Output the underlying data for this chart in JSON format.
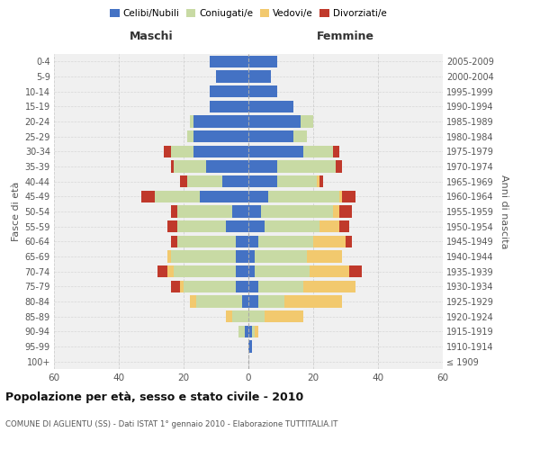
{
  "age_groups": [
    "100+",
    "95-99",
    "90-94",
    "85-89",
    "80-84",
    "75-79",
    "70-74",
    "65-69",
    "60-64",
    "55-59",
    "50-54",
    "45-49",
    "40-44",
    "35-39",
    "30-34",
    "25-29",
    "20-24",
    "15-19",
    "10-14",
    "5-9",
    "0-4"
  ],
  "birth_years": [
    "≤ 1909",
    "1910-1914",
    "1915-1919",
    "1920-1924",
    "1925-1929",
    "1930-1934",
    "1935-1939",
    "1940-1944",
    "1945-1949",
    "1950-1954",
    "1955-1959",
    "1960-1964",
    "1965-1969",
    "1970-1974",
    "1975-1979",
    "1980-1984",
    "1985-1989",
    "1990-1994",
    "1995-1999",
    "2000-2004",
    "2005-2009"
  ],
  "male_celibi": [
    0,
    0,
    1,
    0,
    2,
    4,
    4,
    4,
    4,
    7,
    5,
    15,
    8,
    13,
    17,
    17,
    17,
    12,
    12,
    10,
    12
  ],
  "male_coniugati": [
    0,
    0,
    2,
    5,
    14,
    16,
    19,
    20,
    18,
    15,
    17,
    14,
    11,
    10,
    7,
    2,
    1,
    0,
    0,
    0,
    0
  ],
  "male_vedovi": [
    0,
    0,
    0,
    2,
    2,
    1,
    2,
    1,
    0,
    0,
    0,
    0,
    0,
    0,
    0,
    0,
    0,
    0,
    0,
    0,
    0
  ],
  "male_divorziati": [
    0,
    0,
    0,
    0,
    0,
    3,
    3,
    0,
    2,
    3,
    2,
    4,
    2,
    1,
    2,
    0,
    0,
    0,
    0,
    0,
    0
  ],
  "female_celibi": [
    0,
    1,
    1,
    0,
    3,
    3,
    2,
    2,
    3,
    5,
    4,
    6,
    9,
    9,
    17,
    14,
    16,
    14,
    9,
    7,
    9
  ],
  "female_coniugati": [
    0,
    0,
    1,
    5,
    8,
    14,
    17,
    16,
    17,
    17,
    22,
    22,
    12,
    18,
    9,
    4,
    4,
    0,
    0,
    0,
    0
  ],
  "female_vedovi": [
    0,
    0,
    1,
    12,
    18,
    16,
    12,
    11,
    10,
    6,
    2,
    1,
    1,
    0,
    0,
    0,
    0,
    0,
    0,
    0,
    0
  ],
  "female_divorziati": [
    0,
    0,
    0,
    0,
    0,
    0,
    4,
    0,
    2,
    3,
    4,
    4,
    1,
    2,
    2,
    0,
    0,
    0,
    0,
    0,
    0
  ],
  "color_celibi": "#4472c4",
  "color_coniugati": "#c8daa4",
  "color_vedovi": "#f2c96e",
  "color_divorziati": "#c0392b",
  "background_color": "#f0f0f0",
  "grid_color": "#cccccc",
  "title": "Popolazione per età, sesso e stato civile - 2010",
  "subtitle": "COMUNE DI AGLIENTU (SS) - Dati ISTAT 1° gennaio 2010 - Elaborazione TUTTITALIA.IT",
  "ylabel_left": "Fasce di età",
  "ylabel_right": "Anni di nascita",
  "xlim": 60,
  "header_maschi": "Maschi",
  "header_femmine": "Femmine",
  "legend_labels": [
    "Celibi/Nubili",
    "Coniugati/e",
    "Vedovi/e",
    "Divorziati/e"
  ]
}
